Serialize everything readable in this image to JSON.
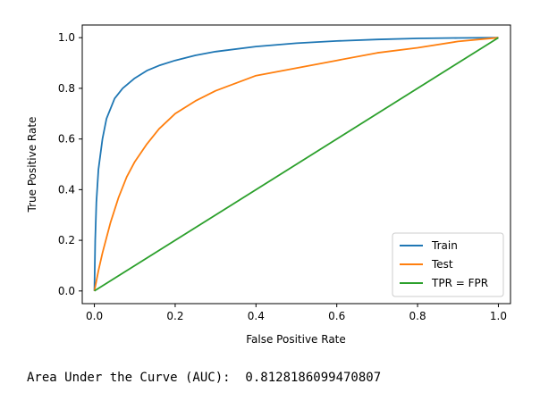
{
  "chart_data": {
    "type": "line",
    "title": "",
    "xlabel": "False Positive Rate",
    "ylabel": "True Positive Rate",
    "xlim": [
      -0.03,
      1.03
    ],
    "ylim": [
      -0.05,
      1.05
    ],
    "xticks": [
      0.0,
      0.2,
      0.4,
      0.6,
      0.8,
      1.0
    ],
    "yticks": [
      0.0,
      0.2,
      0.4,
      0.6,
      0.8,
      1.0
    ],
    "xtick_labels": [
      "0.0",
      "0.2",
      "0.4",
      "0.6",
      "0.8",
      "1.0"
    ],
    "ytick_labels": [
      "0.0",
      "0.2",
      "0.4",
      "0.6",
      "0.8",
      "1.0"
    ],
    "grid": false,
    "legend_position": "bottom-right",
    "series": [
      {
        "name": "Train",
        "color": "#1f77b4",
        "x": [
          0.0,
          0.002,
          0.005,
          0.01,
          0.02,
          0.03,
          0.05,
          0.07,
          0.1,
          0.13,
          0.16,
          0.2,
          0.25,
          0.3,
          0.4,
          0.5,
          0.6,
          0.7,
          0.8,
          0.9,
          1.0
        ],
        "y": [
          0.0,
          0.2,
          0.35,
          0.48,
          0.6,
          0.68,
          0.76,
          0.8,
          0.84,
          0.87,
          0.89,
          0.91,
          0.93,
          0.945,
          0.965,
          0.978,
          0.987,
          0.993,
          0.997,
          0.999,
          1.0
        ]
      },
      {
        "name": "Test",
        "color": "#ff7f0e",
        "x": [
          0.0,
          0.01,
          0.02,
          0.04,
          0.06,
          0.08,
          0.1,
          0.13,
          0.16,
          0.2,
          0.25,
          0.3,
          0.35,
          0.4,
          0.5,
          0.6,
          0.7,
          0.8,
          0.9,
          1.0
        ],
        "y": [
          0.0,
          0.08,
          0.15,
          0.27,
          0.37,
          0.45,
          0.51,
          0.58,
          0.64,
          0.7,
          0.75,
          0.79,
          0.82,
          0.85,
          0.88,
          0.91,
          0.94,
          0.96,
          0.985,
          1.0
        ]
      },
      {
        "name": "TPR = FPR",
        "color": "#2ca02c",
        "x": [
          0.0,
          1.0
        ],
        "y": [
          0.0,
          1.0
        ]
      }
    ]
  },
  "footer": {
    "auc_text": "Area Under the Curve (AUC):  0.8128186099470807"
  }
}
